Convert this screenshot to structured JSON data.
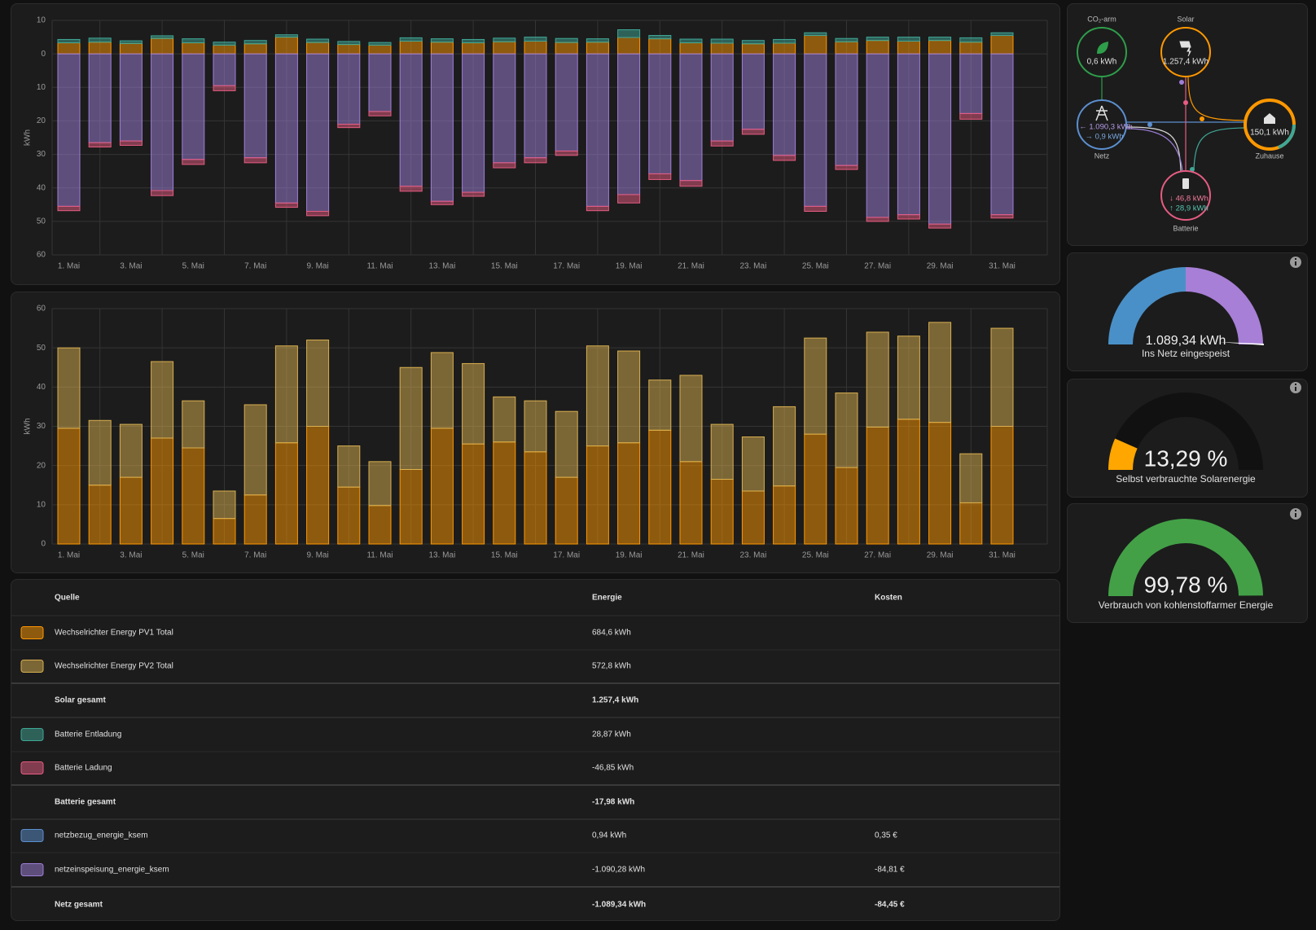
{
  "chart_data": [
    {
      "type": "bar",
      "stacked": true,
      "y_label": "kWh",
      "categories": [
        "1. Mai",
        null,
        "3. Mai",
        null,
        "5. Mai",
        null,
        "7. Mai",
        null,
        "9. Mai",
        null,
        "11. Mai",
        null,
        "13. Mai",
        null,
        "15. Mai",
        null,
        "17. Mai",
        null,
        "19. Mai",
        null,
        "21. Mai",
        null,
        "23. Mai",
        null,
        "25. Mai",
        null,
        "27. Mai",
        null,
        "29. Mai",
        null,
        "31. Mai"
      ],
      "ylim": [
        -60,
        10
      ],
      "yticks": [
        10,
        0,
        {
          "value": -10,
          "label": "10"
        },
        {
          "value": -20,
          "label": "20"
        },
        {
          "value": -30,
          "label": "30"
        },
        {
          "value": -40,
          "label": "40"
        },
        {
          "value": -50,
          "label": "50"
        },
        {
          "value": -60,
          "label": "60"
        }
      ],
      "grid": true,
      "series": [
        {
          "color": "#ff9800",
          "values": [
            3.3,
            3.5,
            3.1,
            4.6,
            3.3,
            2.6,
            3.0,
            5.0,
            3.4,
            2.8,
            2.6,
            3.8,
            3.5,
            3.3,
            3.6,
            3.8,
            3.4,
            3.5,
            4.9,
            4.5,
            3.3,
            3.2,
            3.0,
            3.2,
            5.5,
            3.6,
            4.0,
            3.8,
            4.0,
            3.5,
            5.5
          ]
        },
        {
          "color": "#3fa796",
          "values": [
            1.0,
            1.2,
            0.8,
            0.8,
            1.2,
            0.9,
            1.0,
            0.7,
            1.0,
            0.9,
            0.8,
            1.0,
            1.0,
            1.0,
            1.1,
            1.2,
            1.2,
            1.0,
            2.3,
            1.0,
            1.1,
            1.2,
            1.0,
            1.1,
            0.8,
            1.0,
            1.0,
            1.2,
            1.0,
            1.3,
            0.8
          ]
        },
        {
          "color": "#9f7fd9",
          "values": [
            -45.5,
            -26.5,
            -26,
            -40.8,
            -31.5,
            -9.5,
            -31,
            -44.5,
            -47,
            -21,
            -17.2,
            -39.5,
            -44,
            -41.3,
            -32.5,
            -31,
            -29,
            -45.5,
            -42,
            -35.8,
            -37.8,
            -26,
            -22.5,
            -30.3,
            -45.5,
            -33.3,
            -48.8,
            -48,
            -50.8,
            -17.8,
            -48
          ]
        },
        {
          "color": "#e65c82",
          "values": [
            -1.3,
            -1.3,
            -1.3,
            -1.5,
            -1.5,
            -1.5,
            -1.5,
            -1.3,
            -1.3,
            -1,
            -1.3,
            -1.5,
            -1,
            -1.2,
            -1.5,
            -1.5,
            -1.3,
            -1.3,
            -2.5,
            -1.7,
            -1.7,
            -1.5,
            -1.5,
            -1.5,
            -1.5,
            -1.2,
            -1.2,
            -1.3,
            -1.2,
            -1.7,
            -1
          ]
        }
      ]
    },
    {
      "type": "bar",
      "stacked": true,
      "y_label": "kWh",
      "categories": [
        "1. Mai",
        null,
        "3. Mai",
        null,
        "5. Mai",
        null,
        "7. Mai",
        null,
        "9. Mai",
        null,
        "11. Mai",
        null,
        "13. Mai",
        null,
        "15. Mai",
        null,
        "17. Mai",
        null,
        "19. Mai",
        null,
        "21. Mai",
        null,
        "23. Mai",
        null,
        "25. Mai",
        null,
        "27. Mai",
        null,
        "29. Mai",
        null,
        "31. Mai"
      ],
      "ylim": [
        0,
        60
      ],
      "yticks": [
        0,
        10,
        20,
        30,
        40,
        50,
        60
      ],
      "grid": true,
      "series": [
        {
          "color": "#ff9800",
          "values": [
            29.5,
            15,
            17,
            27,
            24.5,
            6.5,
            12.5,
            25.8,
            30,
            14.5,
            9.8,
            19,
            29.5,
            25.5,
            26,
            23.5,
            17,
            25,
            25.8,
            29,
            21,
            16.5,
            13.5,
            14.8,
            28,
            19.5,
            29.8,
            31.8,
            31,
            10.5,
            30
          ]
        },
        {
          "color": "#d9b050",
          "values": [
            20.5,
            16.5,
            13.5,
            19.5,
            12,
            7,
            23,
            24.7,
            22,
            10.5,
            11.2,
            26,
            19.3,
            20.5,
            11.5,
            13,
            16.8,
            25.5,
            23.4,
            12.8,
            22,
            14,
            13.8,
            20.2,
            24.5,
            19,
            24.2,
            21.2,
            25.5,
            12.5,
            25
          ]
        }
      ]
    }
  ],
  "energy_flow": {
    "co2": {
      "label": "CO₂-arm",
      "value": "0,6 kWh"
    },
    "solar": {
      "label": "Solar",
      "value": "1.257,4 kWh"
    },
    "grid": {
      "label": "Netz",
      "export": "← 1.090,3 kWh",
      "import": "→ 0,9 kWh"
    },
    "home": {
      "label": "Zuhause",
      "value": "150,1 kWh"
    },
    "battery": {
      "label": "Batterie",
      "in": "↓ 46,8 kWh",
      "out": "↑ 28,9 kWh"
    }
  },
  "gauges": [
    {
      "value_label": "1.089,34 kWh",
      "label": "Ins Netz eingespeist"
    },
    {
      "value": 13.29,
      "value_label": "13,29 %",
      "range": [
        0,
        100
      ],
      "color": "#ffa600",
      "label": "Selbst verbrauchte Solarenergie"
    },
    {
      "value": 99.78,
      "value_label": "99,78 %",
      "range": [
        0,
        100
      ],
      "color": "#43a047",
      "label": "Verbrauch von kohlenstoffarmer Energie"
    }
  ],
  "table": {
    "headers": [
      "Quelle",
      "Energie",
      "Kosten"
    ],
    "rows": [
      {
        "color": "#ff9800",
        "source": "Wechselrichter Energy PV1 Total",
        "energy": "684,6 kWh"
      },
      {
        "color": "#d9b050",
        "source": "Wechselrichter Energy PV2 Total",
        "energy": "572,8 kWh"
      },
      {
        "total": true,
        "source": "Solar gesamt",
        "energy": "1.257,4 kWh"
      },
      {
        "color": "#3fa796",
        "source": "Batterie Entladung",
        "energy": "28,87 kWh"
      },
      {
        "color": "#e65c82",
        "source": "Batterie Ladung",
        "energy": "-46,85 kWh"
      },
      {
        "total": true,
        "source": "Batterie gesamt",
        "energy": "-17,98 kWh"
      },
      {
        "color": "#5b8fd0",
        "source": "netzbezug_energie_ksem",
        "energy": "0,94 kWh",
        "cost": "0,35 €"
      },
      {
        "color": "#9f7fd9",
        "source": "netzeinspeisung_energie_ksem",
        "energy": "-1.090,28 kWh",
        "cost": "-84,81 €"
      },
      {
        "total": true,
        "source": "Netz gesamt",
        "energy": "-1.089,34 kWh",
        "cost": "-84,45 €"
      }
    ]
  }
}
